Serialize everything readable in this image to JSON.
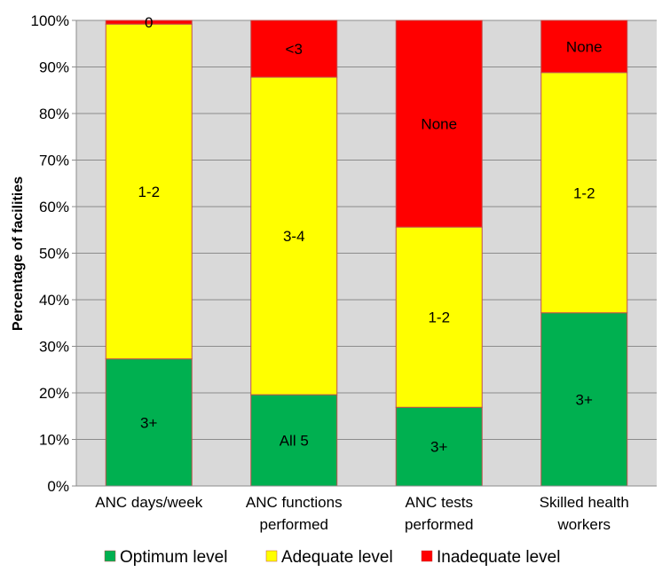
{
  "chart_data": {
    "type": "bar",
    "stacked": true,
    "categories": [
      [
        "ANC days/week"
      ],
      [
        "ANC functions",
        "performed"
      ],
      [
        "ANC tests",
        "performed"
      ],
      [
        "Skilled health",
        "workers"
      ]
    ],
    "series": [
      {
        "name": "Optimum level",
        "color": "#00b050",
        "values": [
          27.3,
          19.6,
          16.9,
          37.2
        ],
        "labels": [
          "3+",
          "All 5",
          "3+",
          "3+"
        ]
      },
      {
        "name": "Adequate level",
        "color": "#ffff00",
        "values": [
          71.9,
          68.2,
          38.7,
          51.6
        ],
        "labels": [
          "1-2",
          "3-4",
          "1-2",
          "1-2"
        ]
      },
      {
        "name": "Inadequate level",
        "color": "#ff0000",
        "values": [
          0.8,
          12.2,
          44.4,
          11.2
        ],
        "labels": [
          "0",
          "<3",
          "None",
          "None"
        ]
      }
    ],
    "ylabel": "Percentage of  facilities",
    "ylim": [
      0,
      100
    ],
    "yticks": [
      "0%",
      "10%",
      "20%",
      "30%",
      "40%",
      "50%",
      "60%",
      "70%",
      "80%",
      "90%",
      "100%"
    ],
    "grid": true,
    "legend": "bottom"
  }
}
